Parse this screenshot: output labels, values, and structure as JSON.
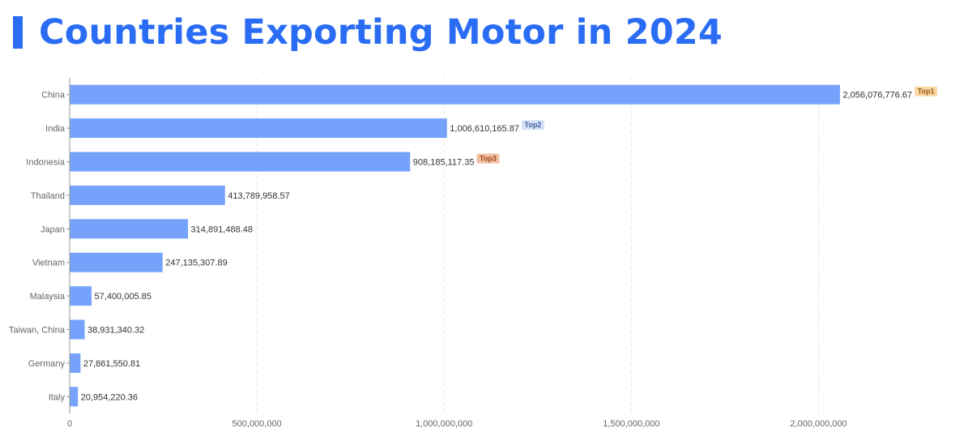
{
  "title": "Countries Exporting Motor in 2024",
  "colors": {
    "accent": "#2a6df4",
    "bar": "#75a3fc",
    "badges": [
      {
        "bg": "#f9d9a6",
        "fg": "#9a5b12"
      },
      {
        "bg": "#d6e1f8",
        "fg": "#3f5f9f"
      },
      {
        "bg": "#f1c0a0",
        "fg": "#9b4a22"
      }
    ]
  },
  "chart_data": {
    "type": "bar",
    "orientation": "horizontal",
    "categories": [
      "China",
      "India",
      "Indonesia",
      "Thailand",
      "Japan",
      "Vietnam",
      "Malaysia",
      "Taiwan, China",
      "Germany",
      "Italy"
    ],
    "values": [
      2056076776.67,
      1006610165.87,
      908185117.35,
      413789958.57,
      314891488.48,
      247135307.89,
      57400005.85,
      38931340.32,
      27861550.81,
      20954220.36
    ],
    "value_labels": [
      "2,056,076,776.67",
      "1,006,610,165.87",
      "908,185,117.35",
      "413,789,958.57",
      "314,891,488.48",
      "247,135,307.89",
      "57,400,005.85",
      "38,931,340.32",
      "27,861,550.81",
      "20,954,220.36"
    ],
    "badges": [
      "Top1",
      "Top2",
      "Top3"
    ],
    "x_ticks": [
      0,
      500000000,
      1000000000,
      1500000000,
      2000000000
    ],
    "x_tick_labels": [
      "0",
      "500,000,000",
      "1,000,000,000",
      "1,500,000,000",
      "2,000,000,000"
    ],
    "xlim": [
      0,
      2300000000
    ],
    "xlabel": "",
    "ylabel": "",
    "grid": "vertical dashed"
  }
}
